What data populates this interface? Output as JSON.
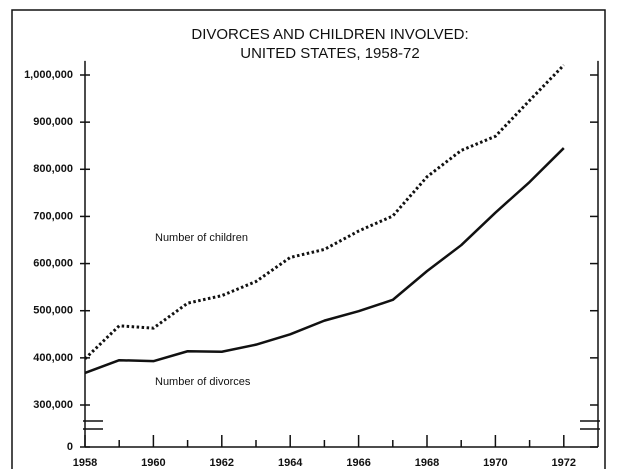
{
  "chart_data": {
    "type": "line",
    "title": [
      "DIVORCES AND CHILDREN INVOLVED:",
      "UNITED STATES, 1958-72"
    ],
    "x": [
      1958,
      1959,
      1960,
      1961,
      1962,
      1963,
      1964,
      1965,
      1966,
      1967,
      1968,
      1969,
      1970,
      1971,
      1972
    ],
    "series": [
      {
        "name": "Number of children",
        "color": "#111111",
        "style": "dotted",
        "values": [
          398000,
          468000,
          463000,
          516000,
          532000,
          562000,
          613000,
          630000,
          669000,
          701000,
          784000,
          840000,
          870000,
          946000,
          1021000
        ]
      },
      {
        "name": "Number of divorces",
        "color": "#111111",
        "style": "solid",
        "values": [
          368000,
          395000,
          393000,
          414000,
          413000,
          428000,
          450000,
          479000,
          499000,
          523000,
          584000,
          639000,
          708000,
          773000,
          845000
        ]
      }
    ],
    "xlim": [
      1958,
      1973
    ],
    "xticks": [
      1958,
      1960,
      1962,
      1964,
      1966,
      1968,
      1970,
      1972
    ],
    "x_minor_ticks": [
      1959,
      1961,
      1963,
      1965,
      1967,
      1969,
      1971
    ],
    "ylim": [
      0,
      1030000
    ],
    "y_break": [
      0,
      300000
    ],
    "yticks": [
      0,
      {
        "value": 300000,
        "label": "300,000"
      },
      {
        "value": 400000,
        "label": "400,000"
      },
      {
        "value": 500000,
        "label": "500,000"
      },
      {
        "value": 600000,
        "label": "600,000"
      },
      {
        "value": 700000,
        "label": "700,000"
      },
      {
        "value": 800000,
        "label": "800,000"
      },
      {
        "value": 900000,
        "label": "900,000"
      },
      {
        "value": 1000000,
        "label": "1,000,000"
      }
    ],
    "grid": false
  }
}
